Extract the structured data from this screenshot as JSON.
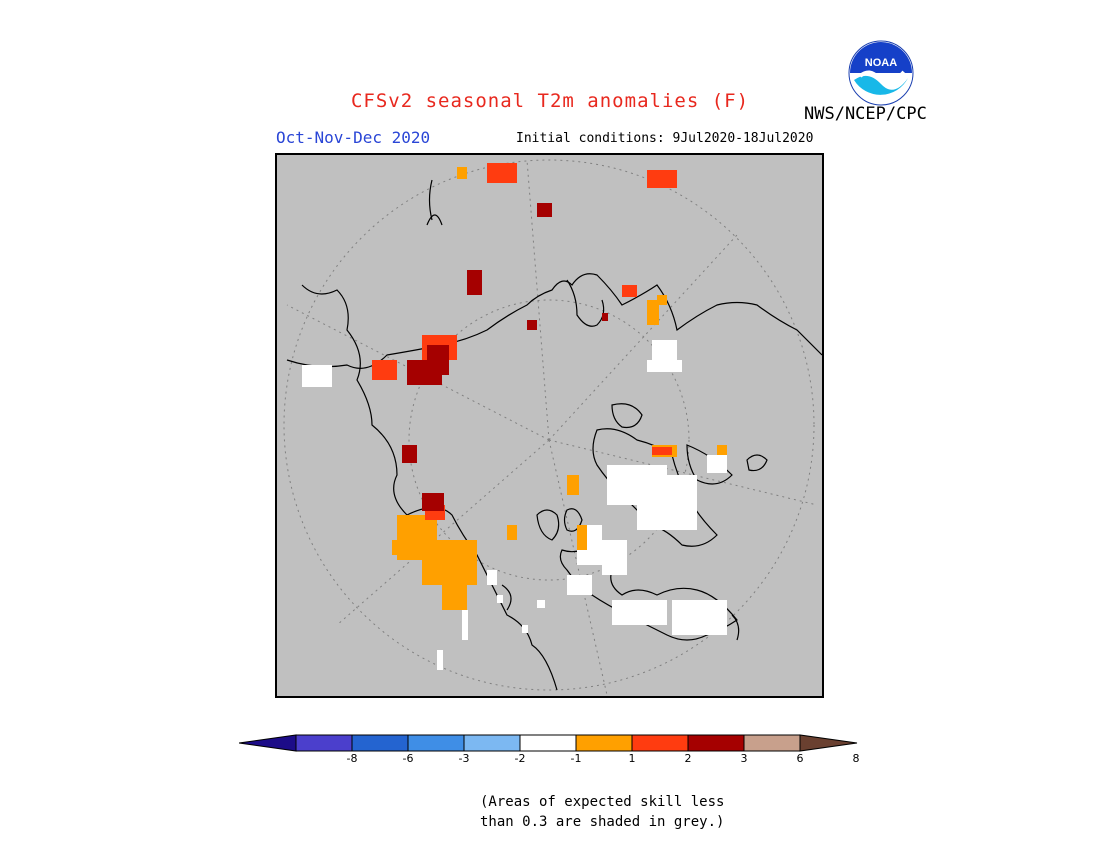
{
  "title": "CFSv2 seasonal T2m anomalies (F)",
  "season": "Oct-Nov-Dec 2020",
  "initial_conditions": "Initial conditions: 9Jul2020-18Jul2020",
  "organization": "NWS/NCEP/CPC",
  "logo_text": "NOAA",
  "skill_note_line1": "(Areas of expected skill less",
  "skill_note_line2": "than 0.3 are shaded in grey.)",
  "colorbar": {
    "colors": [
      "#1c0c88",
      "#4b3fcc",
      "#2464d0",
      "#3f8ee6",
      "#7cb8f2",
      "#ffffff",
      "#ffa000",
      "#ff3c10",
      "#a50000",
      "#c8a08c",
      "#6a4030"
    ],
    "ticks": [
      "-8",
      "-6",
      "-3",
      "-2",
      "-1",
      "1",
      "2",
      "3",
      "6",
      "8"
    ]
  },
  "colors": {
    "grey_mask": "#c0c0c0",
    "title_red": "#e8281e",
    "season_blue": "#2a46d6"
  }
}
